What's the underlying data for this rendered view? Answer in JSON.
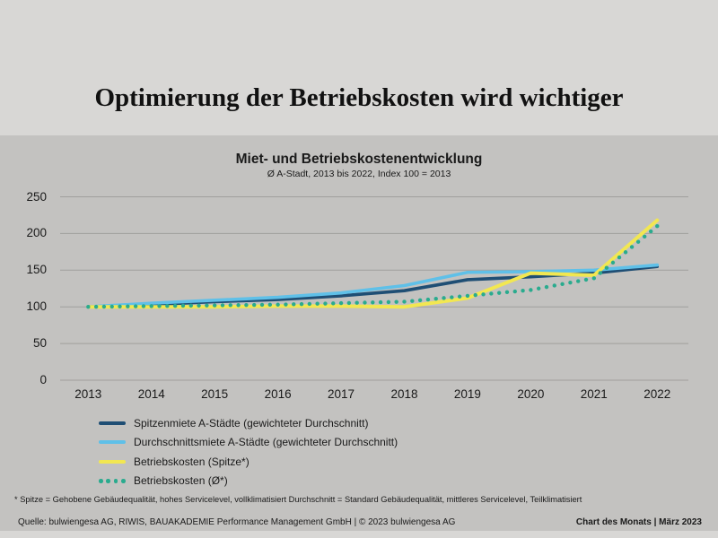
{
  "page": {
    "main_title": "Optimierung der Betriebskosten wird wichtiger",
    "footnote": "* Spitze = Gehobene Gebäudequalität, hohes Servicelevel, vollklimatisiert Durchschnitt = Standard Gebäudequalität, mittleres Servicelevel, Teilklimatisiert",
    "footer_source": "Quelle: bulwiengesa AG, RIWIS, BAUAKADEMIE Performance Management GmbH | © 2023 bulwiengesa AG",
    "footer_right": "Chart des Monats | März 2023"
  },
  "colors": {
    "outer_band": "#d8d7d5",
    "panel": "#c3c2c0",
    "gridline": "#a09f9d",
    "text": "#1a1a1a"
  },
  "chart_data": {
    "type": "line",
    "title": "Miet- und Betriebskostenentwicklung",
    "subtitle": "Ø A-Stadt, 2013 bis 2022, Index 100 = 2013",
    "x": [
      "2013",
      "2014",
      "2015",
      "2016",
      "2017",
      "2018",
      "2019",
      "2020",
      "2021",
      "2022"
    ],
    "ylim": [
      0,
      250
    ],
    "yticks": [
      0,
      50,
      100,
      150,
      200,
      250
    ],
    "grid": "horizontal",
    "legend_position": "bottom-left",
    "series": [
      {
        "name": "Spitzenmiete A-Städte (gewichteter Durchschnitt)",
        "color": "#1f4e74",
        "style": "solid",
        "width": 3.6,
        "values": [
          100,
          103,
          107,
          110,
          115,
          122,
          137,
          141,
          146,
          155
        ]
      },
      {
        "name": "Durchschnittsmiete A-Städte (gewichteter Durchschnitt)",
        "color": "#5fc0e8",
        "style": "solid",
        "width": 3.6,
        "values": [
          100,
          105,
          109,
          113,
          119,
          129,
          147,
          148,
          150,
          157
        ]
      },
      {
        "name": "Betriebskosten (Spitze*)",
        "color": "#f2e751",
        "style": "solid",
        "width": 4,
        "values": [
          100,
          100,
          100,
          101,
          101,
          100,
          112,
          146,
          143,
          218
        ]
      },
      {
        "name": "Betriebskosten (Ø*)",
        "color": "#2aab8e",
        "style": "dotted",
        "width": 4.4,
        "values": [
          100,
          101,
          102,
          103,
          105,
          107,
          115,
          123,
          139,
          210
        ]
      }
    ]
  }
}
